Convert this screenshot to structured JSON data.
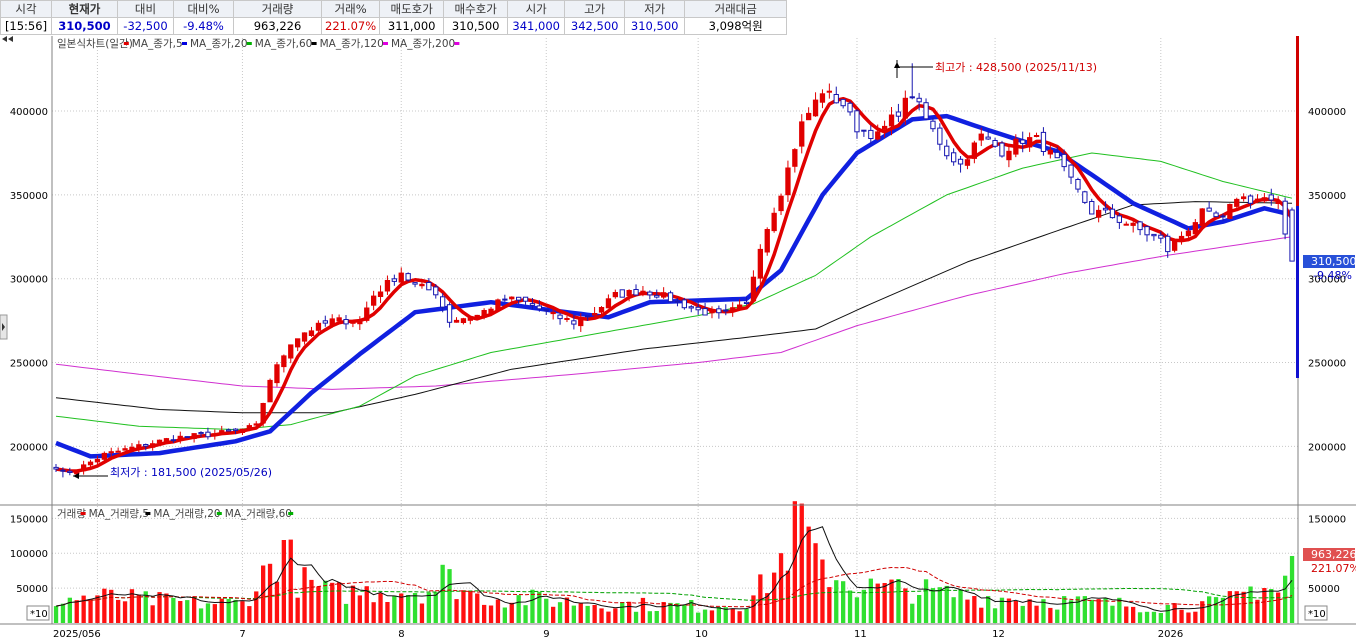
{
  "quote": {
    "headers": [
      "시각",
      "현재가",
      "대비",
      "대비%",
      "거래량",
      "거래%",
      "매도호가",
      "매수호가",
      "시가",
      "고가",
      "저가",
      "거래대금"
    ],
    "values": [
      "[15:56]",
      "310,500",
      "-32,500",
      "-9.48%",
      "963,226",
      "221.07%",
      "311,000",
      "310,500",
      "341,000",
      "342,500",
      "310,500",
      "3,098억원"
    ]
  },
  "legend": {
    "price_title": "일본식차트(일간)",
    "price_mas": [
      {
        "label": "MA_종가,5",
        "color": "#e00000"
      },
      {
        "label": "MA_종가,20",
        "color": "#0000e0"
      },
      {
        "label": "MA_종가,60",
        "color": "#00b000"
      },
      {
        "label": "MA_종가,120",
        "color": "#000000"
      },
      {
        "label": "MA_종가,200",
        "color": "#e000e0"
      }
    ],
    "vol_title": "거래량",
    "vol_mas": [
      {
        "label": "MA_거래량,5",
        "color": "#e00000"
      },
      {
        "label": "MA_거래량,20",
        "color": "#000000"
      },
      {
        "label": "MA_거래량,60",
        "color": "#00b000"
      }
    ]
  },
  "annotations": {
    "high": "최고가 : 428,500 (2025/11/13)",
    "low": "최저가 : 181,500 (2025/05/26)",
    "last_price": "310,500",
    "last_change": "-9.48%",
    "last_volume": "963,226",
    "last_volume_pct": "221.07%",
    "vol_unit": "*10"
  },
  "chart_data": {
    "type": "candlestick",
    "price_ylim": [
      168000,
      440000
    ],
    "price_ticks": [
      200000,
      250000,
      300000,
      350000,
      400000
    ],
    "price_tick_labels": [
      "200000",
      "250000",
      "300000",
      "350000",
      "400000"
    ],
    "volume_ylim": [
      0,
      162000
    ],
    "volume_ticks": [
      50000,
      100000,
      150000
    ],
    "volume_tick_labels": [
      "50000",
      "100000",
      "150000"
    ],
    "x_labels": [
      "2025/05",
      "6",
      "7",
      "8",
      "9",
      "10",
      "11",
      "12",
      "2026"
    ],
    "x_label_dates": [
      "2025/05/23",
      "2025/06/02",
      "2025/07/01",
      "2025/08/01",
      "2025/09/01",
      "2025/10/01",
      "2025/11/03",
      "2025/12/01",
      "2026/01/02"
    ],
    "grid": true,
    "close_anchors": [
      [
        "2025/05/23",
        188000
      ],
      [
        "2025/05/26",
        184000
      ],
      [
        "2025/05/28",
        186000
      ],
      [
        "2025/06/03",
        195000
      ],
      [
        "2025/06/10",
        200000
      ],
      [
        "2025/06/17",
        205000
      ],
      [
        "2025/06/24",
        207000
      ],
      [
        "2025/06/30",
        209000
      ],
      [
        "2025/07/03",
        212000
      ],
      [
        "2025/07/07",
        240000
      ],
      [
        "2025/07/10",
        262000
      ],
      [
        "2025/07/14",
        268000
      ],
      [
        "2025/07/18",
        275000
      ],
      [
        "2025/07/24",
        275000
      ],
      [
        "2025/07/28",
        290000
      ],
      [
        "2025/08/01",
        304000
      ],
      [
        "2025/08/05",
        296000
      ],
      [
        "2025/08/08",
        292000
      ],
      [
        "2025/08/12",
        275000
      ],
      [
        "2025/08/18",
        278000
      ],
      [
        "2025/08/22",
        288000
      ],
      [
        "2025/08/27",
        286000
      ],
      [
        "2025/09/02",
        278000
      ],
      [
        "2025/09/05",
        274000
      ],
      [
        "2025/09/10",
        280000
      ],
      [
        "2025/09/15",
        290000
      ],
      [
        "2025/09/19",
        293000
      ],
      [
        "2025/09/23",
        291000
      ],
      [
        "2025/09/26",
        286000
      ],
      [
        "2025/10/01",
        281000
      ],
      [
        "2025/10/06",
        278000
      ],
      [
        "2025/10/10",
        284000
      ],
      [
        "2025/10/14",
        320000
      ],
      [
        "2025/10/17",
        352000
      ],
      [
        "2025/10/22",
        392000
      ],
      [
        "2025/10/27",
        412000
      ],
      [
        "2025/10/30",
        404000
      ],
      [
        "2025/11/03",
        390000
      ],
      [
        "2025/11/06",
        385000
      ],
      [
        "2025/11/10",
        395000
      ],
      [
        "2025/11/13",
        410000
      ],
      [
        "2025/11/17",
        395000
      ],
      [
        "2025/11/20",
        375000
      ],
      [
        "2025/11/24",
        368000
      ],
      [
        "2025/11/27",
        385000
      ],
      [
        "2025/12/02",
        376000
      ],
      [
        "2025/12/05",
        383000
      ],
      [
        "2025/12/09",
        383000
      ],
      [
        "2025/12/12",
        370000
      ],
      [
        "2025/12/16",
        358000
      ],
      [
        "2025/12/19",
        340000
      ],
      [
        "2025/12/23",
        339000
      ],
      [
        "2025/12/29",
        331000
      ],
      [
        "2026/01/02",
        323000
      ],
      [
        "2026/01/05",
        317000
      ],
      [
        "2026/01/08",
        330000
      ],
      [
        "2026/01/12",
        339000
      ],
      [
        "2026/01/15",
        335000
      ],
      [
        "2026/01/19",
        349000
      ],
      [
        "2026/01/21",
        347000
      ],
      [
        "2026/01/23",
        348000
      ],
      [
        "2026/01/27",
        343000
      ],
      [
        "2026/01/29",
        310500
      ]
    ],
    "ma20_anchors": [
      [
        "2025/05/23",
        202000
      ],
      [
        "2025/05/30",
        194000
      ],
      [
        "2025/06/15",
        196000
      ],
      [
        "2025/06/30",
        203000
      ],
      [
        "2025/07/07",
        209000
      ],
      [
        "2025/07/15",
        232000
      ],
      [
        "2025/07/24",
        255000
      ],
      [
        "2025/08/05",
        280000
      ],
      [
        "2025/08/20",
        286000
      ],
      [
        "2025/09/02",
        281000
      ],
      [
        "2025/09/12",
        277000
      ],
      [
        "2025/09/22",
        286000
      ],
      [
        "2025/10/01",
        287000
      ],
      [
        "2025/10/10",
        288000
      ],
      [
        "2025/10/17",
        305000
      ],
      [
        "2025/10/27",
        350000
      ],
      [
        "2025/11/03",
        375000
      ],
      [
        "2025/11/13",
        395000
      ],
      [
        "2025/11/20",
        397000
      ],
      [
        "2025/11/27",
        390000
      ],
      [
        "2025/12/05",
        382000
      ],
      [
        "2025/12/12",
        376000
      ],
      [
        "2025/12/19",
        362000
      ],
      [
        "2025/12/29",
        345000
      ],
      [
        "2026/01/08",
        330000
      ],
      [
        "2026/01/15",
        334000
      ],
      [
        "2026/01/23",
        342000
      ],
      [
        "2026/01/29",
        338000
      ]
    ],
    "ma60_anchors": [
      [
        "2025/05/23",
        218000
      ],
      [
        "2025/06/10",
        212000
      ],
      [
        "2025/06/30",
        210000
      ],
      [
        "2025/07/10",
        213000
      ],
      [
        "2025/07/24",
        224000
      ],
      [
        "2025/08/05",
        242000
      ],
      [
        "2025/08/20",
        256000
      ],
      [
        "2025/09/10",
        267000
      ],
      [
        "2025/10/01",
        278000
      ],
      [
        "2025/10/13",
        285000
      ],
      [
        "2025/10/24",
        302000
      ],
      [
        "2025/11/05",
        325000
      ],
      [
        "2025/11/20",
        350000
      ],
      [
        "2025/12/05",
        366000
      ],
      [
        "2025/12/19",
        375000
      ],
      [
        "2026/01/02",
        370000
      ],
      [
        "2026/01/15",
        358000
      ],
      [
        "2026/01/29",
        348000
      ]
    ],
    "ma120_anchors": [
      [
        "2025/05/23",
        229000
      ],
      [
        "2025/06/15",
        222000
      ],
      [
        "2025/07/01",
        220000
      ],
      [
        "2025/07/20",
        220000
      ],
      [
        "2025/08/05",
        231000
      ],
      [
        "2025/08/25",
        246000
      ],
      [
        "2025/09/20",
        258000
      ],
      [
        "2025/10/10",
        265000
      ],
      [
        "2025/10/24",
        270000
      ],
      [
        "2025/11/05",
        285000
      ],
      [
        "2025/11/25",
        310000
      ],
      [
        "2025/12/15",
        330000
      ],
      [
        "2025/12/29",
        344000
      ],
      [
        "2026/01/10",
        346000
      ],
      [
        "2026/01/29",
        345000
      ]
    ],
    "ma200_anchors": [
      [
        "2025/05/23",
        249000
      ],
      [
        "2025/06/10",
        243000
      ],
      [
        "2025/07/01",
        236000
      ],
      [
        "2025/07/20",
        234000
      ],
      [
        "2025/08/10",
        236000
      ],
      [
        "2025/09/05",
        243000
      ],
      [
        "2025/10/01",
        250000
      ],
      [
        "2025/10/17",
        256000
      ],
      [
        "2025/11/03",
        272000
      ],
      [
        "2025/11/25",
        290000
      ],
      [
        "2025/12/15",
        303000
      ],
      [
        "2026/01/05",
        314000
      ],
      [
        "2026/01/29",
        325000
      ]
    ],
    "volume_anchors": [
      [
        "2025/05/23",
        35000
      ],
      [
        "2025/06/02",
        40000
      ],
      [
        "2025/06/20",
        30000
      ],
      [
        "2025/07/01",
        30000
      ],
      [
        "2025/07/07",
        85000
      ],
      [
        "2025/07/09",
        120000
      ],
      [
        "2025/07/12",
        65000
      ],
      [
        "2025/07/18",
        45000
      ],
      [
        "2025/08/01",
        50000
      ],
      [
        "2025/08/08",
        50000
      ],
      [
        "2025/08/11",
        70000
      ],
      [
        "2025/08/18",
        40000
      ],
      [
        "2025/09/01",
        35000
      ],
      [
        "2025/09/10",
        30000
      ],
      [
        "2025/10/01",
        25000
      ],
      [
        "2025/10/10",
        30000
      ],
      [
        "2025/10/16",
        75000
      ],
      [
        "2025/10/20",
        115000
      ],
      [
        "2025/10/22",
        157000
      ],
      [
        "2025/10/24",
        88000
      ],
      [
        "2025/11/03",
        55000
      ],
      [
        "2025/11/13",
        50000
      ],
      [
        "2025/11/25",
        40000
      ],
      [
        "2025/12/10",
        35000
      ],
      [
        "2025/12/22",
        30000
      ],
      [
        "2026/01/02",
        25000
      ],
      [
        "2026/01/15",
        30000
      ],
      [
        "2026/01/23",
        60000
      ],
      [
        "2026/01/27",
        45000
      ],
      [
        "2026/01/29",
        96000
      ]
    ]
  }
}
